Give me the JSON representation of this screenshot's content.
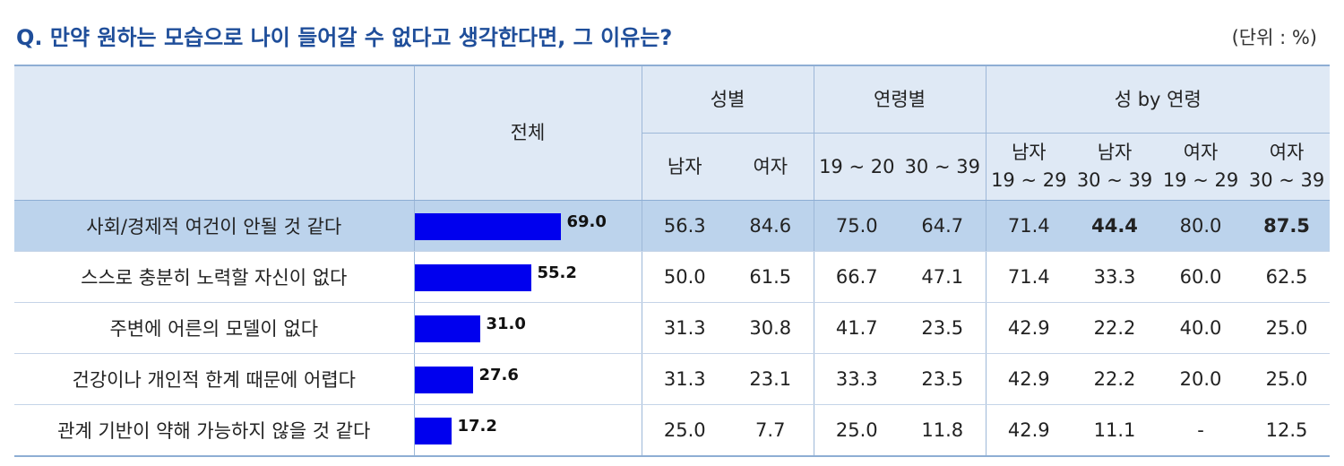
{
  "title": "Q. 만약 원하는 모습으로 나이 들어갈 수 없다고 생각한다면, 그 이유는?",
  "unit": "(단위 : %)",
  "headers": {
    "total": "전체",
    "gender": "성별",
    "age": "연령별",
    "gender_age": "성 by 연령",
    "sub": [
      {
        "line1": "남자",
        "line2": ""
      },
      {
        "line1": "여자",
        "line2": ""
      },
      {
        "line1": "19 ~ 20",
        "line2": ""
      },
      {
        "line1": "30 ~ 39",
        "line2": ""
      },
      {
        "line1": "남자",
        "line2": "19 ~ 29"
      },
      {
        "line1": "남자",
        "line2": "30 ~ 39"
      },
      {
        "line1": "여자",
        "line2": "19 ~ 29"
      },
      {
        "line1": "여자",
        "line2": "30 ~ 39"
      }
    ]
  },
  "chart_data": {
    "type": "bar",
    "categories": [
      "사회/경제적 여건이 안될 것 같다",
      "스스로 충분히 노력할 자신이 없다",
      "주변에 어른의 모델이 없다",
      "건강이나 개인적 한계 때문에 어렵다",
      "관계 기반이 약해 가능하지 않을 것 같다"
    ],
    "values": [
      69.0,
      55.2,
      31.0,
      27.6,
      17.2
    ],
    "value_labels": [
      "69.0",
      "55.2",
      "31.0",
      "27.6",
      "17.2"
    ],
    "xlim": [
      0,
      100
    ],
    "bar_color": "#0000ee"
  },
  "rows": [
    {
      "cells": [
        "56.3",
        "84.6",
        "75.0",
        "64.7",
        "71.4",
        "44.4",
        "80.0",
        "87.5"
      ],
      "bold": [
        false,
        false,
        false,
        false,
        false,
        true,
        false,
        true
      ],
      "highlight": true
    },
    {
      "cells": [
        "50.0",
        "61.5",
        "66.7",
        "47.1",
        "71.4",
        "33.3",
        "60.0",
        "62.5"
      ],
      "bold": [
        false,
        false,
        false,
        false,
        false,
        false,
        false,
        false
      ],
      "highlight": false
    },
    {
      "cells": [
        "31.3",
        "30.8",
        "41.7",
        "23.5",
        "42.9",
        "22.2",
        "40.0",
        "25.0"
      ],
      "bold": [
        false,
        false,
        false,
        false,
        false,
        false,
        false,
        false
      ],
      "highlight": false
    },
    {
      "cells": [
        "31.3",
        "23.1",
        "33.3",
        "23.5",
        "42.9",
        "22.2",
        "20.0",
        "25.0"
      ],
      "bold": [
        false,
        false,
        false,
        false,
        false,
        false,
        false,
        false
      ],
      "highlight": false
    },
    {
      "cells": [
        "25.0",
        "7.7",
        "25.0",
        "11.8",
        "42.9",
        "11.1",
        "-",
        "12.5"
      ],
      "bold": [
        false,
        false,
        false,
        false,
        false,
        false,
        false,
        false
      ],
      "highlight": false
    }
  ],
  "colors": {
    "title": "#1f4e9a",
    "header_bg": "#dfe9f5",
    "highlight_bg": "#bcd3ec",
    "bar": "#0000ee"
  }
}
